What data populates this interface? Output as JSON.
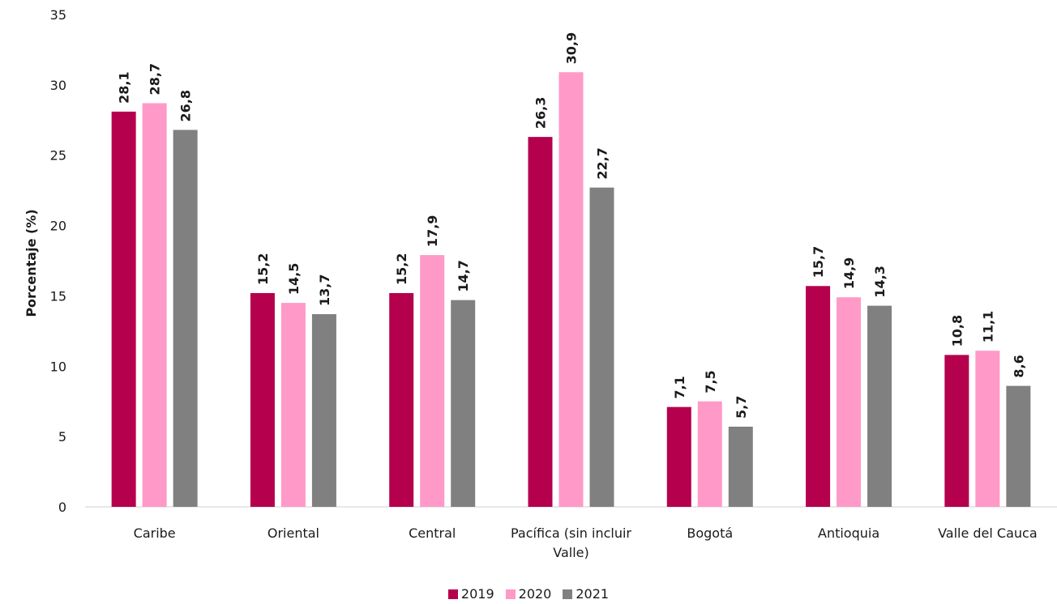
{
  "chart_data": {
    "type": "bar",
    "ylabel": "Porcentaje (%)",
    "xlabel": "",
    "ylim": [
      0,
      35
    ],
    "yticks": [
      0,
      5,
      10,
      15,
      20,
      25,
      30,
      35
    ],
    "grid": false,
    "legend_position": "bottom",
    "categories": [
      [
        "Caribe"
      ],
      [
        "Oriental"
      ],
      [
        "Central"
      ],
      [
        "Pacífica (sin incluir",
        "Valle)"
      ],
      [
        "Bogotá"
      ],
      [
        "Antioquia"
      ],
      [
        "Valle del Cauca"
      ]
    ],
    "series": [
      {
        "name": "2019",
        "color": "#b5004d",
        "values": [
          28.1,
          15.2,
          15.2,
          26.3,
          7.1,
          15.7,
          10.8
        ],
        "labels": [
          "28,1",
          "15,2",
          "15,2",
          "26,3",
          "7,1",
          "15,7",
          "10,8"
        ]
      },
      {
        "name": "2020",
        "color": "#ff99c8",
        "values": [
          28.7,
          14.5,
          17.9,
          30.9,
          7.5,
          14.9,
          11.1
        ],
        "labels": [
          "28,7",
          "14,5",
          "17,9",
          "30,9",
          "7,5",
          "14,9",
          "11,1"
        ]
      },
      {
        "name": "2021",
        "color": "#808080",
        "values": [
          26.8,
          13.7,
          14.7,
          22.7,
          5.7,
          14.3,
          8.6
        ],
        "labels": [
          "26,8",
          "13,7",
          "14,7",
          "22,7",
          "5,7",
          "14,3",
          "8,6"
        ]
      }
    ]
  }
}
